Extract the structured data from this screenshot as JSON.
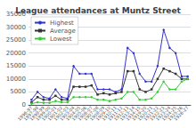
{
  "chart_data": {
    "type": "line",
    "title": "League attendances at Muntz Street",
    "categories": [
      "1896-97",
      "1897-98",
      "1898-99",
      "1899-00",
      "1900-01",
      "1901-02",
      "1902-03",
      "1903-04",
      "1904-05",
      "1905-06",
      "1906-07",
      "1907-08",
      "1908-09",
      "1909-10",
      "1910-11",
      "1911-12",
      "1912-13",
      "1913-14",
      "1914-15",
      "1919-20",
      "1920-21",
      "1921-22",
      "1922-23",
      "1923-24",
      "1924-25",
      "1925-26",
      "1926-27"
    ],
    "series": [
      {
        "name": "Highest",
        "color": "#3333cc",
        "marker": "circle",
        "values": [
          2000,
          5000,
          3000,
          2500,
          6000,
          3000,
          2500,
          15000,
          12000,
          12000,
          12000,
          6000,
          6000,
          6000,
          5000,
          6000,
          22000,
          20000,
          12000,
          9000,
          9000,
          15000,
          29000,
          22000,
          20000,
          11000,
          11000
        ]
      },
      {
        "name": "Average",
        "color": "#333333",
        "marker": "square",
        "values": [
          1000,
          3000,
          2000,
          2000,
          3500,
          2000,
          2000,
          7000,
          7000,
          7000,
          7500,
          4000,
          4500,
          4000,
          4500,
          5000,
          13000,
          13000,
          6000,
          5000,
          6000,
          10000,
          14000,
          13000,
          12000,
          10000,
          10000
        ]
      },
      {
        "name": "Lowest",
        "color": "#33cc33",
        "marker": "circle",
        "values": [
          500,
          1000,
          800,
          800,
          1500,
          1000,
          1000,
          3000,
          3000,
          3000,
          3000,
          2000,
          2000,
          1500,
          2000,
          2500,
          5000,
          5000,
          2000,
          2000,
          2500,
          5000,
          9000,
          6000,
          6000,
          9000,
          10000
        ]
      }
    ],
    "ylim": [
      0,
      35000
    ],
    "yticks": [
      0,
      5000,
      10000,
      15000,
      20000,
      25000,
      30000,
      35000
    ],
    "grid": true,
    "legend": "upper left"
  }
}
